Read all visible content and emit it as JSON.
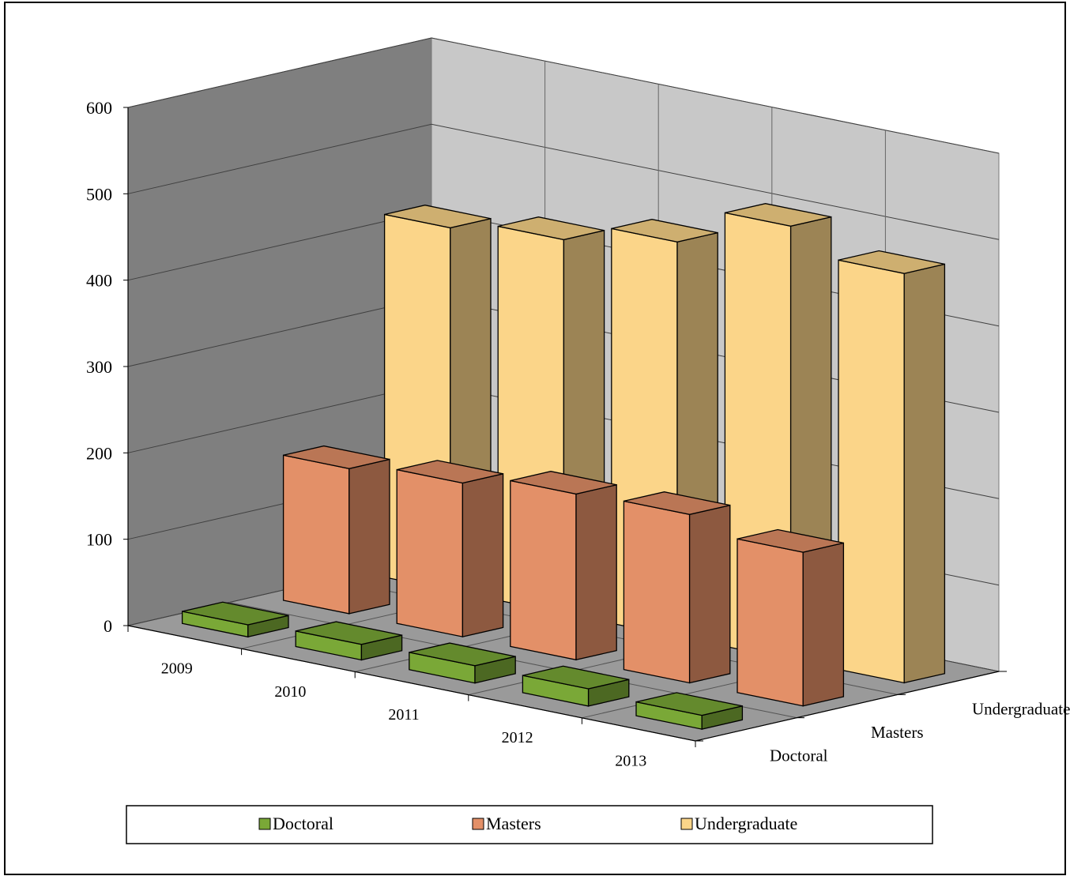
{
  "chart_data": {
    "type": "bar",
    "subtype": "3d-column",
    "title": "",
    "xlabel": "",
    "ylabel": "",
    "categories": [
      "2009",
      "2010",
      "2011",
      "2012",
      "2013"
    ],
    "series": [
      {
        "name": "Doctoral",
        "values": [
          14,
          18,
          20,
          20,
          16
        ],
        "color": "#7aa837"
      },
      {
        "name": "Masters",
        "values": [
          168,
          178,
          192,
          195,
          178
        ],
        "color": "#e39068"
      },
      {
        "name": "Undergraduate",
        "values": [
          420,
          433,
          457,
          502,
          474
        ],
        "color": "#fbd589"
      }
    ],
    "ylim": [
      0,
      600
    ],
    "yticks": [
      "0",
      "100",
      "200",
      "300",
      "400",
      "500",
      "600"
    ],
    "grid": true,
    "legend_position": "bottom"
  },
  "colors": {
    "back_wall": "#c8c8c8",
    "side_wall": "#7f7f7f",
    "floor": "#9a9a9a",
    "grid_line": "#404040",
    "frame": "#000000"
  }
}
